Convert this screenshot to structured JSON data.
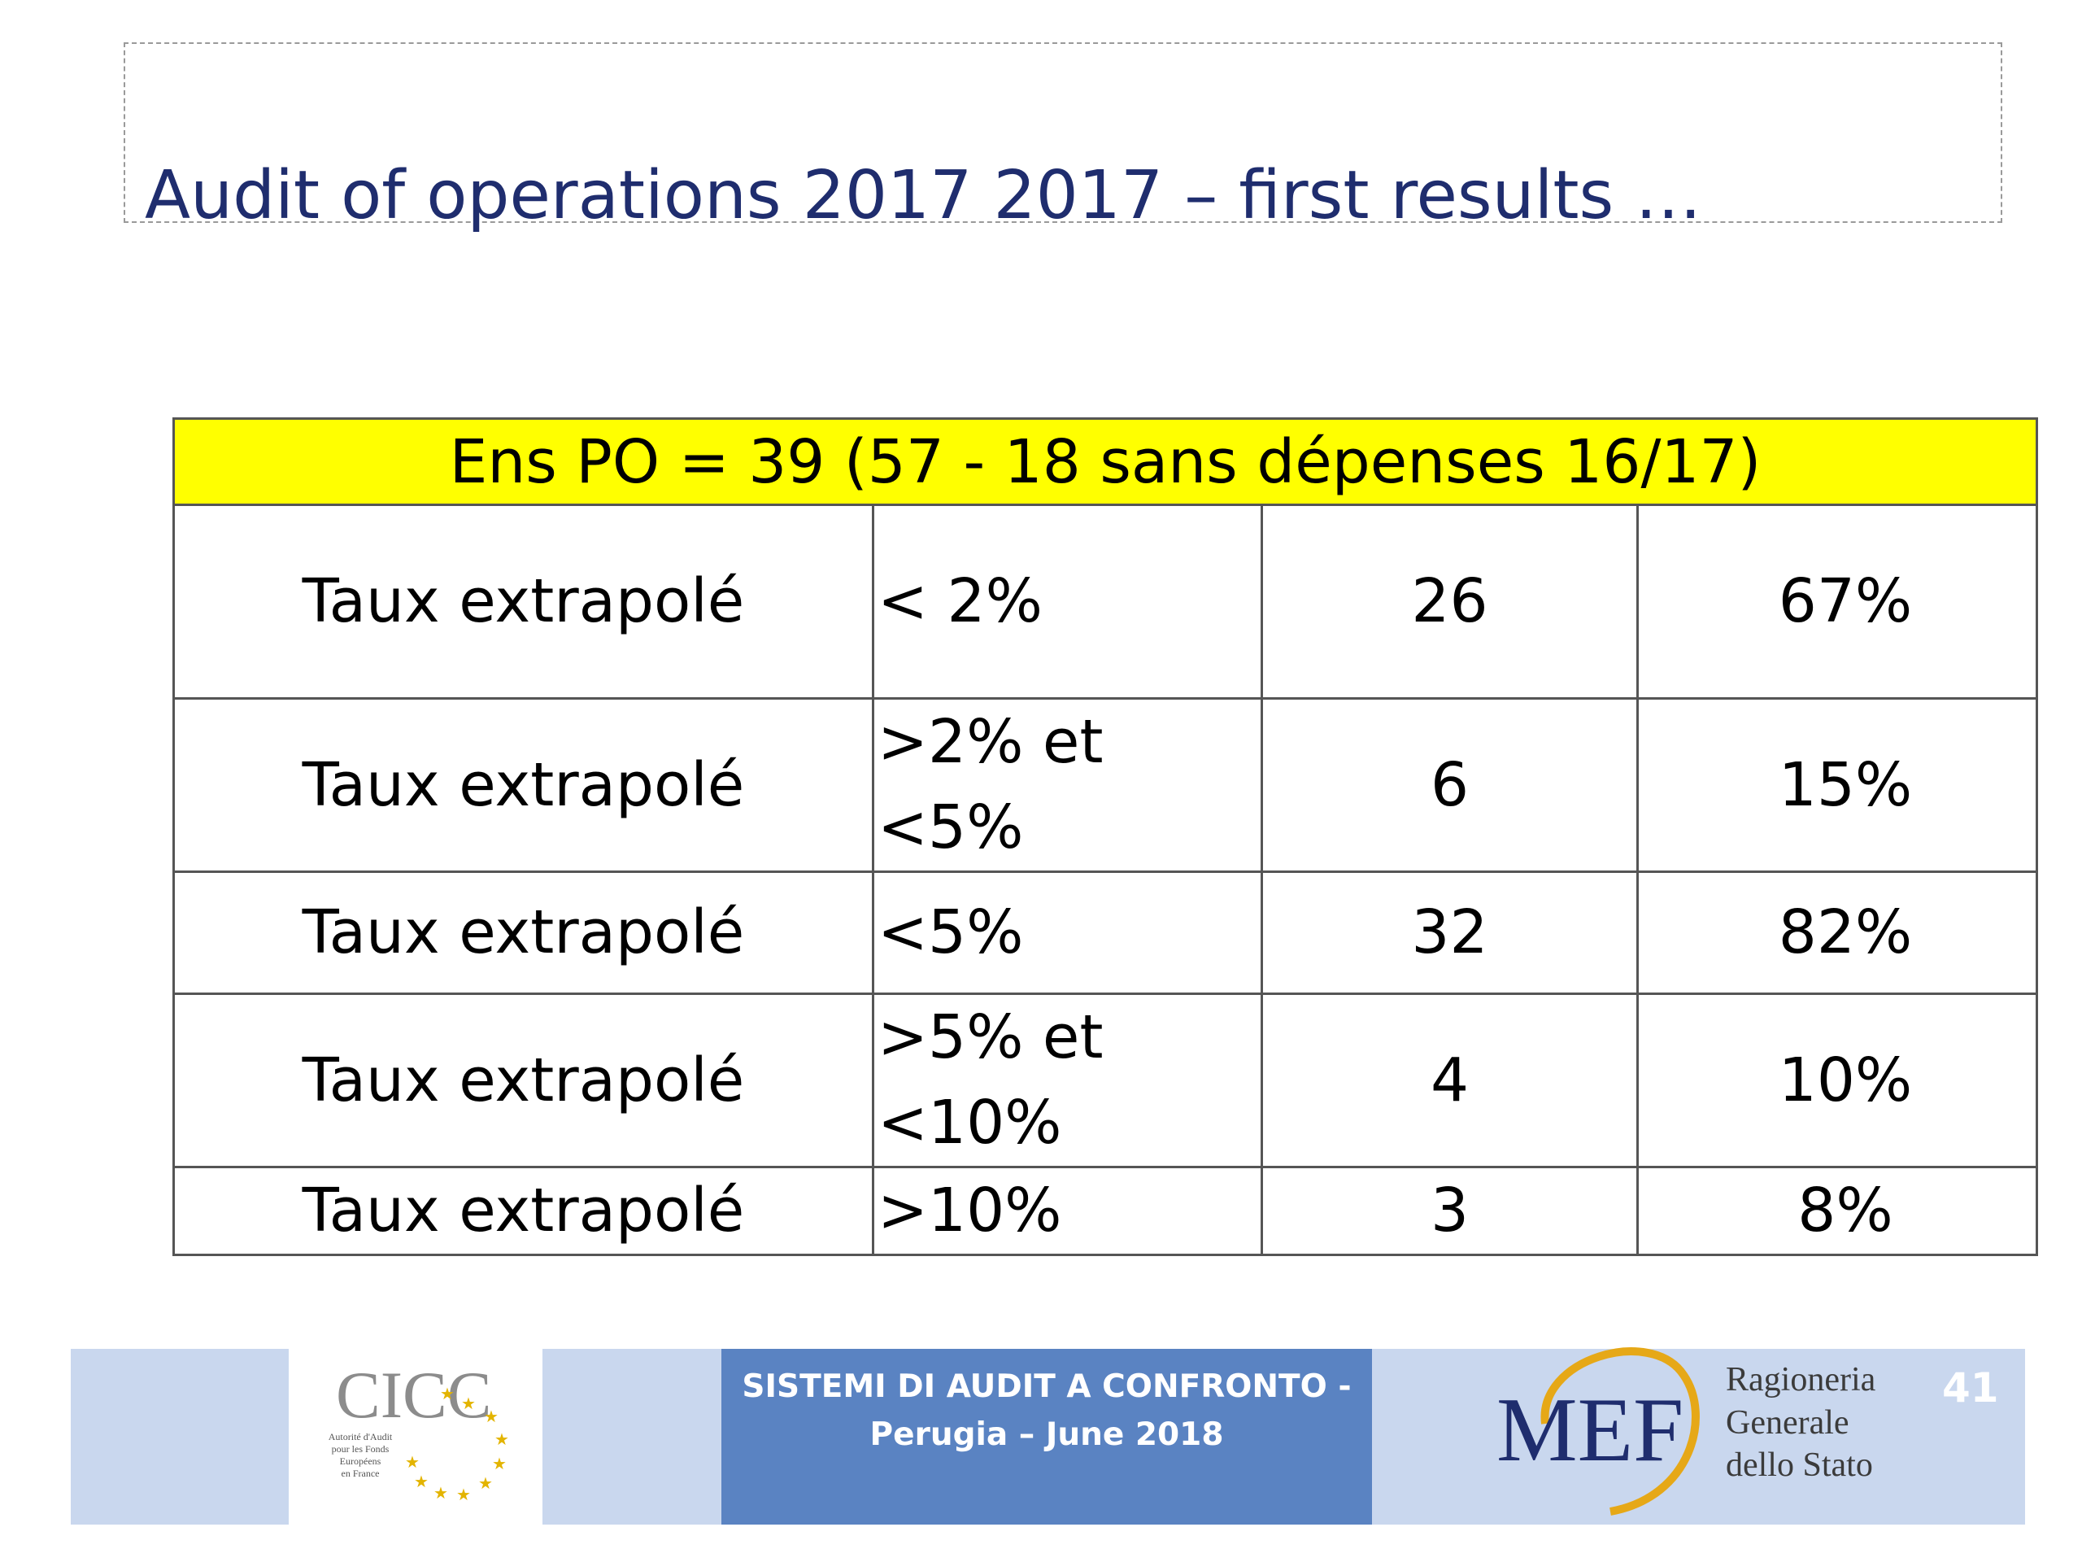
{
  "slide": {
    "title": "Audit of operations 2017 2017 – first results …"
  },
  "table": {
    "header": "Ens PO  = 39 (57 - 18 sans dépenses 16/17)",
    "rows": [
      {
        "label": "Taux extrapolé",
        "range_line1": "< 2%",
        "range_line2": "",
        "count": "26",
        "percent": "67%"
      },
      {
        "label": "Taux extrapolé",
        "range_line1": ">2% et",
        "range_line2": "<5%",
        "count": "6",
        "percent": "15%"
      },
      {
        "label": "Taux extrapolé",
        "range_line1": "<5%",
        "range_line2": "",
        "count": "32",
        "percent": "82%"
      },
      {
        "label": "Taux extrapolé",
        "range_line1": ">5% et",
        "range_line2": "<10%",
        "count": "4",
        "percent": "10%"
      },
      {
        "label": "Taux extrapolé",
        "range_line1": ">10%",
        "range_line2": "",
        "count": "3",
        "percent": "8%"
      }
    ],
    "header_color": "#ffff00"
  },
  "footer": {
    "banner_line1": "SISTEMI DI AUDIT  A CONFRONTO  -",
    "banner_line2": "Perugia – June 2018",
    "page_number": "41",
    "cicc_logo_text": "CICC",
    "cicc_small_lines": [
      "Autorité d'Audit",
      "pour les Fonds",
      "Européens",
      "en France"
    ],
    "mef_logo_text": "MEF",
    "rgs_line1": "Ragioneria",
    "rgs_line2": "Generale",
    "rgs_line3": "dello Stato",
    "banner_color": "#5a83c2",
    "panel_color": "#c9d7ee"
  }
}
